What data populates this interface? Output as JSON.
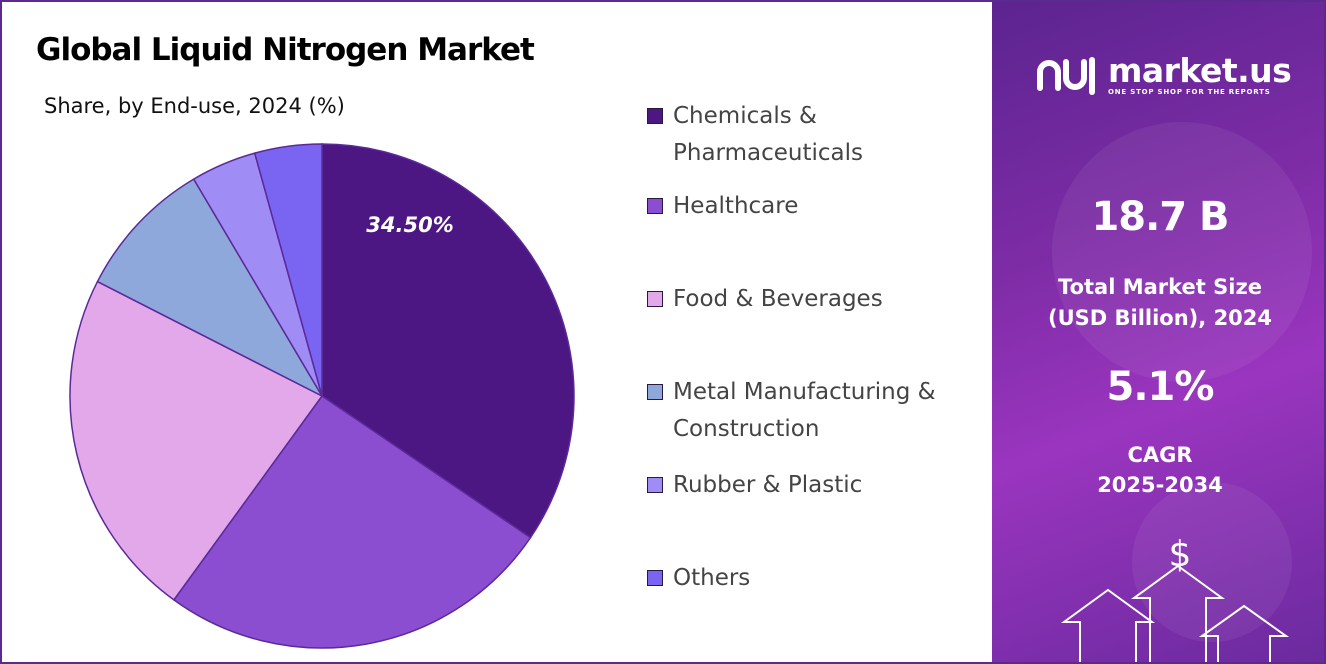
{
  "chart_data": {
    "type": "pie",
    "title": "Global Liquid Nitrogen Market",
    "subtitle": "Share, by End-use, 2024 (%)",
    "legend_position": "right",
    "slices": [
      {
        "name": "Chemicals & Pharmaceuticals",
        "value": 34.5,
        "label": "34.50%",
        "color": "#4c1683"
      },
      {
        "name": "Healthcare",
        "value": 25.5,
        "color": "#8b4ed0"
      },
      {
        "name": "Food & Beverages",
        "value": 22.5,
        "color": "#e2a8ea"
      },
      {
        "name": "Metal Manufacturing & Construction",
        "value": 9.0,
        "color": "#8ea8db"
      },
      {
        "name": "Rubber & Plastic",
        "value": 4.2,
        "color": "#a08cf5"
      },
      {
        "name": "Others",
        "value": 4.3,
        "color": "#7a64f2"
      }
    ]
  },
  "brand": {
    "name": "market.us",
    "tagline": "ONE STOP SHOP FOR THE REPORTS"
  },
  "stats": {
    "market_size_value": "18.7 B",
    "market_size_label_line1": "Total Market Size",
    "market_size_label_line2": "(USD Billion), 2024",
    "cagr_value": "5.1%",
    "cagr_label_line1": "CAGR",
    "cagr_label_line2": "2025-2034"
  },
  "decor": {
    "currency_symbol": "$"
  },
  "colors": {
    "panel_start": "#5c2490",
    "panel_end": "#9a35bf",
    "border": "#5a2a8f"
  }
}
